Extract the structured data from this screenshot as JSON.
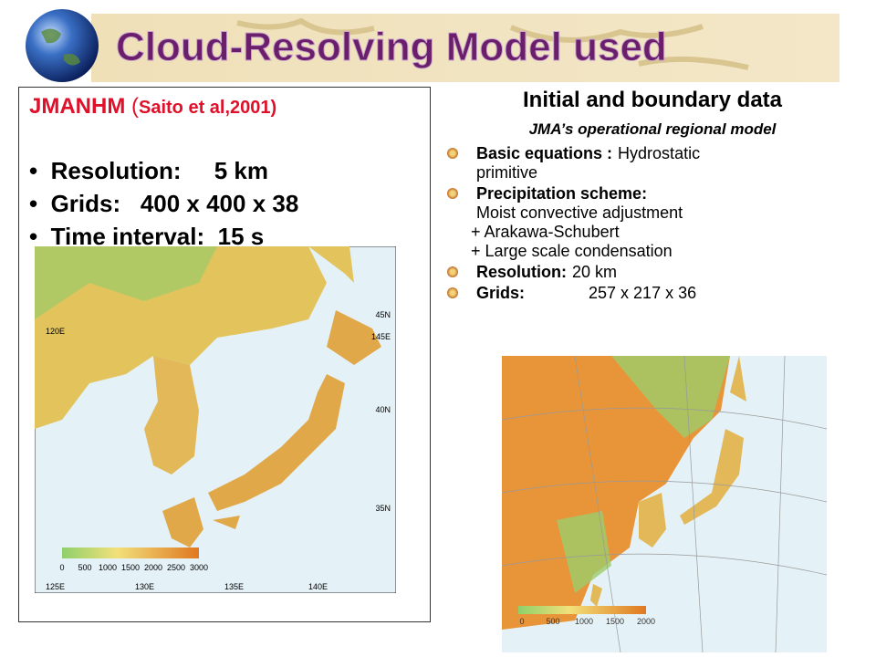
{
  "header": {
    "title": "Cloud-Resolving Model used"
  },
  "left": {
    "heading": "JMANHM",
    "citation_open": "(",
    "citation": "Saito et al,2001)",
    "bullets": [
      {
        "label": "Resolution:",
        "value": "5 km"
      },
      {
        "label": "Grids:",
        "value": "400 x 400 x 38"
      },
      {
        "label": "Time interval:",
        "value": "15 s"
      }
    ],
    "map": {
      "lat_labels": [
        "45N",
        "40N",
        "35N"
      ],
      "lon_labels_top": [
        "120E",
        "145E"
      ],
      "lon_labels_bottom": [
        "125E",
        "130E",
        "135E",
        "140E"
      ],
      "colorbar_labels": [
        "0",
        "500",
        "1000",
        "1500",
        "2000",
        "2500",
        "3000"
      ]
    }
  },
  "right": {
    "heading": "Initial and boundary data",
    "subheading": "JMA’s operational regional model",
    "items": [
      {
        "label": "Basic equations :",
        "lines": [
          "Hydrostatic",
          "primitive"
        ]
      },
      {
        "label": "Precipitation scheme:",
        "lines": [
          "Moist convective adjustment",
          "+ Arakawa-Schubert",
          "+ Large scale condensation"
        ]
      },
      {
        "label": "Resolution:",
        "lines": [
          "20 km"
        ]
      },
      {
        "label": "Grids:",
        "lines": [
          "257 x 217 x 36"
        ]
      }
    ],
    "map": {
      "colorbar_labels": [
        "0",
        "500",
        "1000",
        "1500",
        "2000"
      ]
    }
  }
}
